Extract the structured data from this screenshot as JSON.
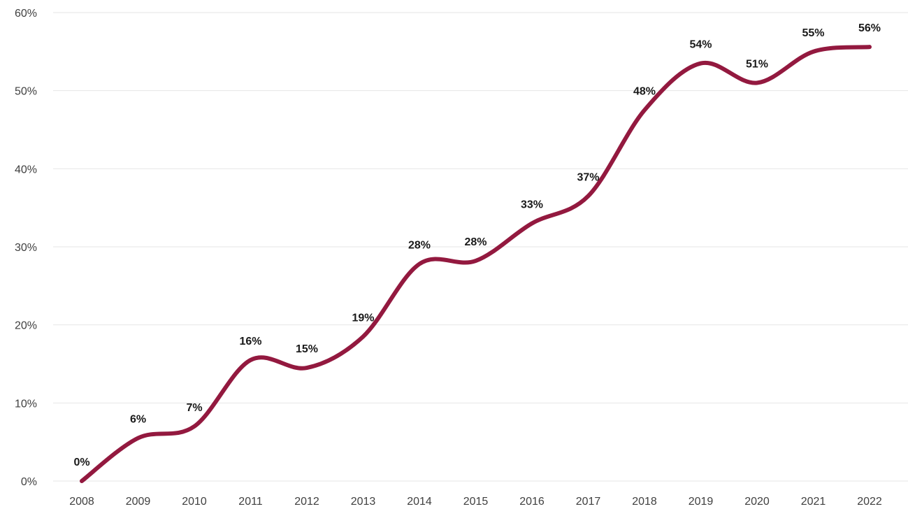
{
  "chart_data": {
    "type": "line",
    "title": "",
    "xlabel": "",
    "ylabel": "",
    "x": [
      "2008",
      "2009",
      "2010",
      "2011",
      "2012",
      "2013",
      "2014",
      "2015",
      "2016",
      "2017",
      "2018",
      "2019",
      "2020",
      "2021",
      "2022"
    ],
    "series": [
      {
        "values": [
          0,
          5.5,
          7,
          15.5,
          14.5,
          18.5,
          27.8,
          28.2,
          33,
          36.5,
          47.5,
          53.5,
          51,
          55,
          55.6
        ]
      }
    ],
    "data_labels": [
      "0%",
      "6%",
      "7%",
      "16%",
      "15%",
      "19%",
      "28%",
      "28%",
      "33%",
      "37%",
      "48%",
      "54%",
      "51%",
      "55%",
      "56%"
    ],
    "ylim": [
      0,
      60
    ],
    "yticks": [
      0,
      10,
      20,
      30,
      40,
      50,
      60
    ],
    "ytick_labels": [
      "0%",
      "10%",
      "20%",
      "30%",
      "40%",
      "50%",
      "60%"
    ],
    "grid": true,
    "legend": "none",
    "line_color": "#93193f"
  }
}
